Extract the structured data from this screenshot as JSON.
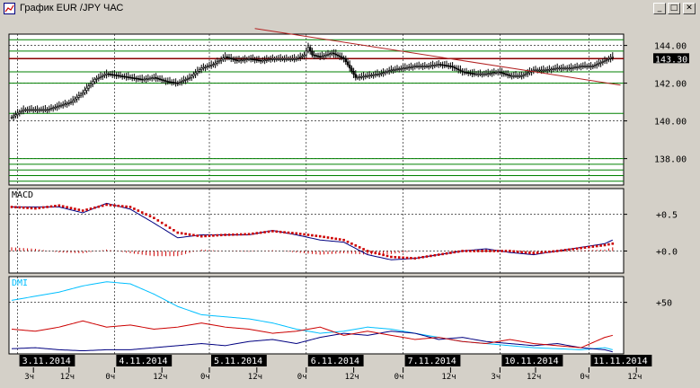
{
  "window": {
    "title": "График EUR /JPY  ЧАС",
    "minimize_glyph": "_",
    "maximize_glyph": "□",
    "close_glyph": "✕"
  },
  "colors": {
    "background": "#ffffff",
    "frame": "#000000",
    "grid": "#000000",
    "candle": "#000000",
    "resistance": "#8b0000",
    "trend": "#b22222",
    "support": "#008000",
    "last_price_bg": "#000000",
    "last_price_text": "#ffffff",
    "macd_line": "#000080",
    "macd_signal": "#cc0000",
    "macd_hist": "#cc0000",
    "adx": "#00bfff",
    "di_plus": "#000080",
    "di_minus": "#cc0000",
    "label_macd": "#000000",
    "label_dmi": "#00bfff",
    "date_box": "#000000",
    "date_text": "#ffffff"
  },
  "chart_data": [
    {
      "type": "candlestick",
      "panel": "price",
      "title": "",
      "ylim": [
        136.6,
        144.6
      ],
      "y_ticks": [
        "144.00",
        "142.00",
        "140.00",
        "138.00"
      ],
      "last_price_label": "143.30",
      "bars_count": 168,
      "closes": [
        [
          0,
          140.2
        ],
        [
          6,
          140.6
        ],
        [
          12,
          140.6
        ],
        [
          18,
          140.6
        ],
        [
          24,
          140.8
        ],
        [
          30,
          141.0
        ],
        [
          36,
          141.5
        ],
        [
          42,
          142.2
        ],
        [
          48,
          142.5
        ],
        [
          54,
          142.4
        ],
        [
          60,
          142.3
        ],
        [
          66,
          142.2
        ],
        [
          72,
          142.3
        ],
        [
          78,
          142.1
        ],
        [
          84,
          142.0
        ],
        [
          90,
          142.3
        ],
        [
          96,
          142.8
        ],
        [
          102,
          143.0
        ],
        [
          108,
          143.4
        ],
        [
          114,
          143.2
        ],
        [
          120,
          143.3
        ],
        [
          126,
          143.2
        ],
        [
          132,
          143.3
        ],
        [
          138,
          143.3
        ],
        [
          144,
          143.3
        ],
        [
          148,
          143.5
        ],
        [
          150,
          143.9
        ],
        [
          152,
          143.5
        ],
        [
          156,
          143.4
        ],
        [
          162,
          143.6
        ],
        [
          168,
          143.3
        ],
        [
          174,
          142.3
        ],
        [
          180,
          142.4
        ],
        [
          186,
          142.5
        ],
        [
          192,
          142.7
        ],
        [
          198,
          142.8
        ],
        [
          204,
          142.9
        ],
        [
          210,
          142.9
        ],
        [
          216,
          143.0
        ],
        [
          222,
          142.9
        ],
        [
          228,
          142.6
        ],
        [
          234,
          142.5
        ],
        [
          240,
          142.5
        ],
        [
          246,
          142.6
        ],
        [
          252,
          142.4
        ],
        [
          258,
          142.4
        ],
        [
          264,
          142.7
        ],
        [
          270,
          142.7
        ],
        [
          276,
          142.8
        ],
        [
          282,
          142.8
        ],
        [
          288,
          142.9
        ],
        [
          294,
          142.9
        ],
        [
          300,
          143.2
        ],
        [
          304,
          143.4
        ]
      ],
      "trendline": {
        "from": [
          123,
          144.9
        ],
        "to": [
          308,
          141.9
        ]
      },
      "resistance_level": 143.3,
      "support_levels": [
        144.3,
        143.7,
        142.6,
        142.0,
        140.4,
        138.0,
        137.7,
        137.4,
        137.1,
        136.8
      ]
    },
    {
      "type": "line",
      "panel": "macd",
      "title": "MACD",
      "ylim": [
        -0.3,
        0.85
      ],
      "y_ticks": [
        "+0.5",
        "+0.0"
      ],
      "series": [
        {
          "role": "macd",
          "values": [
            [
              0,
              0.6
            ],
            [
              12,
              0.6
            ],
            [
              24,
              0.6
            ],
            [
              36,
              0.52
            ],
            [
              48,
              0.65
            ],
            [
              60,
              0.57
            ],
            [
              72,
              0.38
            ],
            [
              84,
              0.18
            ],
            [
              96,
              0.22
            ],
            [
              108,
              0.22
            ],
            [
              120,
              0.22
            ],
            [
              132,
              0.28
            ],
            [
              144,
              0.22
            ],
            [
              156,
              0.15
            ],
            [
              168,
              0.12
            ],
            [
              180,
              -0.05
            ],
            [
              192,
              -0.12
            ],
            [
              204,
              -0.1
            ],
            [
              216,
              -0.05
            ],
            [
              228,
              0.0
            ],
            [
              240,
              0.03
            ],
            [
              252,
              -0.02
            ],
            [
              264,
              -0.05
            ],
            [
              276,
              0.0
            ],
            [
              288,
              0.05
            ],
            [
              300,
              0.1
            ],
            [
              304,
              0.15
            ]
          ]
        },
        {
          "role": "signal",
          "values": [
            [
              0,
              0.6
            ],
            [
              12,
              0.58
            ],
            [
              24,
              0.62
            ],
            [
              36,
              0.55
            ],
            [
              48,
              0.63
            ],
            [
              60,
              0.6
            ],
            [
              72,
              0.45
            ],
            [
              84,
              0.25
            ],
            [
              96,
              0.2
            ],
            [
              108,
              0.22
            ],
            [
              120,
              0.23
            ],
            [
              132,
              0.27
            ],
            [
              144,
              0.24
            ],
            [
              156,
              0.2
            ],
            [
              168,
              0.15
            ],
            [
              180,
              0.0
            ],
            [
              192,
              -0.08
            ],
            [
              204,
              -0.1
            ],
            [
              216,
              -0.05
            ],
            [
              228,
              0.0
            ],
            [
              240,
              0.0
            ],
            [
              252,
              0.0
            ],
            [
              264,
              -0.03
            ],
            [
              276,
              0.0
            ],
            [
              288,
              0.04
            ],
            [
              300,
              0.08
            ],
            [
              304,
              0.1
            ]
          ]
        }
      ],
      "histogram": [
        [
          0,
          0.05
        ],
        [
          12,
          0.03
        ],
        [
          24,
          -0.02
        ],
        [
          36,
          -0.03
        ],
        [
          48,
          0.02
        ],
        [
          60,
          -0.03
        ],
        [
          72,
          -0.07
        ],
        [
          84,
          -0.07
        ],
        [
          96,
          0.02
        ],
        [
          108,
          0.0
        ],
        [
          120,
          -0.01
        ],
        [
          132,
          0.01
        ],
        [
          144,
          -0.02
        ],
        [
          156,
          -0.05
        ],
        [
          168,
          -0.03
        ],
        [
          180,
          -0.05
        ],
        [
          192,
          -0.04
        ],
        [
          204,
          0.0
        ],
        [
          216,
          0.0
        ],
        [
          228,
          0.0
        ],
        [
          240,
          0.03
        ],
        [
          252,
          -0.02
        ],
        [
          264,
          -0.02
        ],
        [
          276,
          0.0
        ],
        [
          288,
          0.01
        ],
        [
          300,
          0.02
        ],
        [
          304,
          0.05
        ]
      ]
    },
    {
      "type": "line",
      "panel": "dmi",
      "title": "DMI",
      "ylim": [
        0,
        75
      ],
      "y_ticks": [
        "+50"
      ],
      "series": [
        {
          "role": "adx",
          "values": [
            [
              0,
              52
            ],
            [
              12,
              56
            ],
            [
              24,
              60
            ],
            [
              36,
              66
            ],
            [
              48,
              70
            ],
            [
              60,
              68
            ],
            [
              72,
              58
            ],
            [
              84,
              46
            ],
            [
              96,
              38
            ],
            [
              108,
              36
            ],
            [
              120,
              34
            ],
            [
              132,
              30
            ],
            [
              144,
              24
            ],
            [
              156,
              20
            ],
            [
              168,
              22
            ],
            [
              180,
              26
            ],
            [
              192,
              24
            ],
            [
              204,
              20
            ],
            [
              216,
              16
            ],
            [
              228,
              12
            ],
            [
              240,
              10
            ],
            [
              252,
              8
            ],
            [
              264,
              6
            ],
            [
              276,
              5
            ],
            [
              288,
              4
            ],
            [
              300,
              6
            ],
            [
              304,
              4
            ]
          ]
        },
        {
          "role": "di_plus",
          "values": [
            [
              0,
              5
            ],
            [
              12,
              6
            ],
            [
              24,
              4
            ],
            [
              36,
              3
            ],
            [
              48,
              4
            ],
            [
              60,
              4
            ],
            [
              72,
              6
            ],
            [
              84,
              8
            ],
            [
              96,
              10
            ],
            [
              108,
              8
            ],
            [
              120,
              12
            ],
            [
              132,
              14
            ],
            [
              144,
              10
            ],
            [
              156,
              16
            ],
            [
              168,
              20
            ],
            [
              180,
              18
            ],
            [
              192,
              22
            ],
            [
              204,
              20
            ],
            [
              216,
              14
            ],
            [
              228,
              16
            ],
            [
              240,
              12
            ],
            [
              252,
              10
            ],
            [
              264,
              8
            ],
            [
              276,
              10
            ],
            [
              288,
              6
            ],
            [
              300,
              4
            ],
            [
              304,
              2
            ]
          ]
        },
        {
          "role": "di_minus",
          "values": [
            [
              0,
              24
            ],
            [
              12,
              22
            ],
            [
              24,
              26
            ],
            [
              36,
              32
            ],
            [
              48,
              26
            ],
            [
              60,
              28
            ],
            [
              72,
              24
            ],
            [
              84,
              26
            ],
            [
              96,
              30
            ],
            [
              108,
              26
            ],
            [
              120,
              24
            ],
            [
              132,
              20
            ],
            [
              144,
              22
            ],
            [
              156,
              26
            ],
            [
              168,
              18
            ],
            [
              180,
              22
            ],
            [
              192,
              18
            ],
            [
              204,
              14
            ],
            [
              216,
              16
            ],
            [
              228,
              12
            ],
            [
              240,
              10
            ],
            [
              252,
              14
            ],
            [
              264,
              10
            ],
            [
              276,
              8
            ],
            [
              288,
              6
            ],
            [
              300,
              16
            ],
            [
              304,
              18
            ]
          ]
        }
      ]
    }
  ],
  "time_axis": {
    "dates": [
      {
        "label": "3.11.2014",
        "at": 3
      },
      {
        "label": "4.11.2014",
        "at": 52
      },
      {
        "label": "5.11.2014",
        "at": 100
      },
      {
        "label": "6.11.2014",
        "at": 149
      },
      {
        "label": "7.11.2014",
        "at": 198
      },
      {
        "label": "10.11.2014",
        "at": 247
      },
      {
        "label": "11.11.2014",
        "at": 292
      }
    ],
    "hours": [
      {
        "label": "3ч",
        "at": 11
      },
      {
        "label": "12ч",
        "at": 29
      },
      {
        "label": "0ч",
        "at": 52
      },
      {
        "label": "12ч",
        "at": 76
      },
      {
        "label": "0ч",
        "at": 100
      },
      {
        "label": "12ч",
        "at": 124
      },
      {
        "label": "0ч",
        "at": 149
      },
      {
        "label": "12ч",
        "at": 173
      },
      {
        "label": "0ч",
        "at": 198
      },
      {
        "label": "12ч",
        "at": 222
      },
      {
        "label": "3ч",
        "at": 247
      },
      {
        "label": "12ч",
        "at": 265
      },
      {
        "label": "0ч",
        "at": 292
      },
      {
        "label": "12ч",
        "at": 316
      }
    ]
  }
}
